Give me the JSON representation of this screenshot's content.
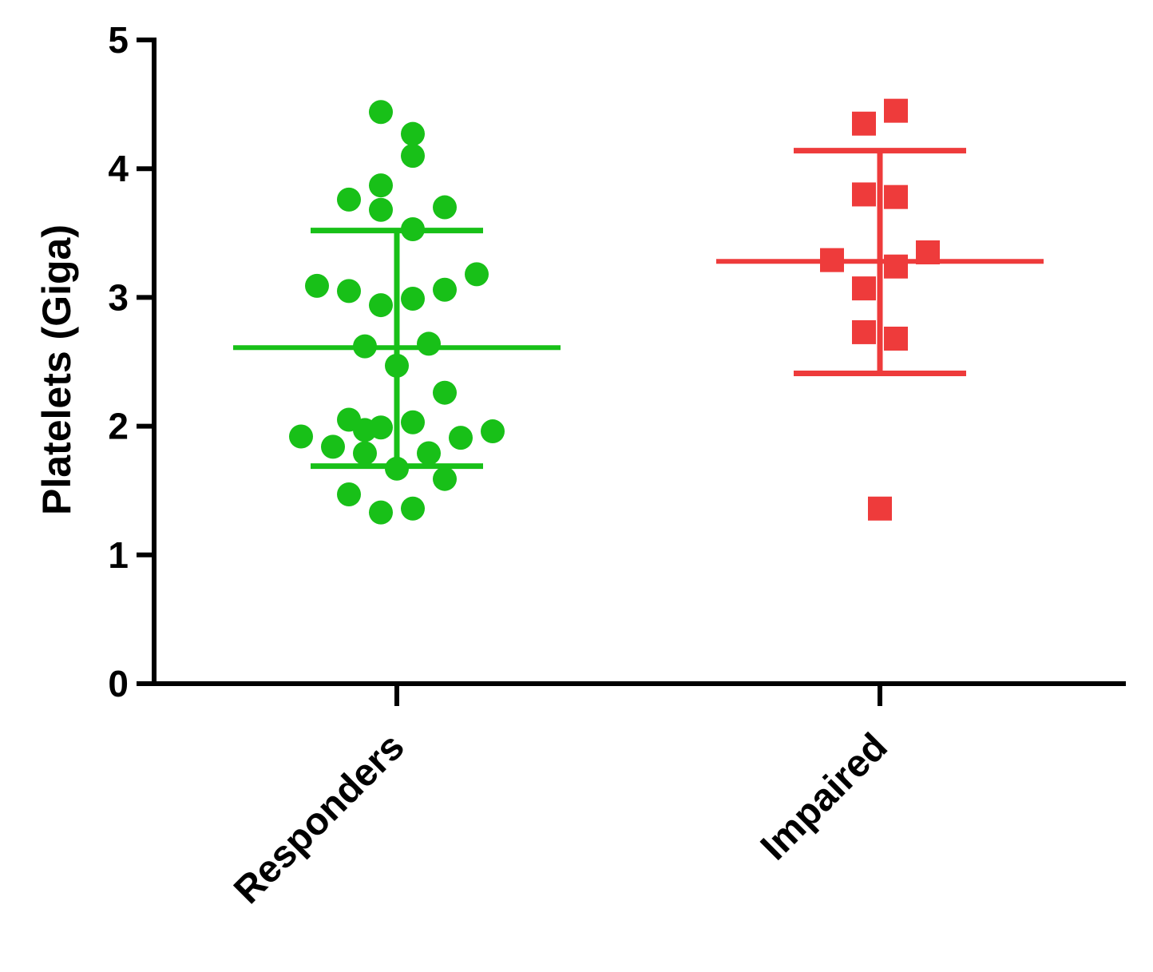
{
  "chart_data": {
    "type": "scatter",
    "ylabel": "Platelets (Giga)",
    "xlabel": "",
    "ylim": [
      0,
      5
    ],
    "yticks": [
      0,
      1,
      2,
      3,
      4,
      5
    ],
    "categories": [
      "Responders",
      "Impaired"
    ],
    "grid": false,
    "series": [
      {
        "category": "Responders",
        "marker": "circle",
        "color": "#18c018",
        "mean": 2.61,
        "sd_upper": 3.52,
        "sd_lower": 1.69,
        "points": [
          {
            "offset": -0.04,
            "y": 4.44
          },
          {
            "offset": 0.04,
            "y": 4.27
          },
          {
            "offset": 0.04,
            "y": 4.1
          },
          {
            "offset": -0.04,
            "y": 3.87
          },
          {
            "offset": -0.12,
            "y": 3.76
          },
          {
            "offset": -0.04,
            "y": 3.68
          },
          {
            "offset": 0.12,
            "y": 3.7
          },
          {
            "offset": 0.04,
            "y": 3.53
          },
          {
            "offset": 0.2,
            "y": 3.18
          },
          {
            "offset": -0.2,
            "y": 3.09
          },
          {
            "offset": -0.12,
            "y": 3.05
          },
          {
            "offset": 0.12,
            "y": 3.06
          },
          {
            "offset": 0.04,
            "y": 2.99
          },
          {
            "offset": -0.04,
            "y": 2.94
          },
          {
            "offset": -0.08,
            "y": 2.62
          },
          {
            "offset": 0.08,
            "y": 2.64
          },
          {
            "offset": 0.0,
            "y": 2.47
          },
          {
            "offset": 0.12,
            "y": 2.26
          },
          {
            "offset": -0.12,
            "y": 2.05
          },
          {
            "offset": 0.04,
            "y": 2.03
          },
          {
            "offset": -0.04,
            "y": 1.99
          },
          {
            "offset": -0.08,
            "y": 1.97
          },
          {
            "offset": 0.24,
            "y": 1.96
          },
          {
            "offset": -0.24,
            "y": 1.92
          },
          {
            "offset": 0.16,
            "y": 1.91
          },
          {
            "offset": -0.16,
            "y": 1.84
          },
          {
            "offset": -0.08,
            "y": 1.79
          },
          {
            "offset": 0.08,
            "y": 1.79
          },
          {
            "offset": 0.0,
            "y": 1.67
          },
          {
            "offset": 0.12,
            "y": 1.59
          },
          {
            "offset": -0.12,
            "y": 1.47
          },
          {
            "offset": 0.04,
            "y": 1.36
          },
          {
            "offset": -0.04,
            "y": 1.33
          }
        ]
      },
      {
        "category": "Impaired",
        "marker": "square",
        "color": "#ee3b3b",
        "mean": 3.28,
        "sd_upper": 4.14,
        "sd_lower": 2.41,
        "points": [
          {
            "offset": 0.04,
            "y": 4.45
          },
          {
            "offset": -0.04,
            "y": 4.35
          },
          {
            "offset": -0.04,
            "y": 3.8
          },
          {
            "offset": 0.04,
            "y": 3.78
          },
          {
            "offset": 0.12,
            "y": 3.35
          },
          {
            "offset": -0.12,
            "y": 3.29
          },
          {
            "offset": 0.04,
            "y": 3.24
          },
          {
            "offset": -0.04,
            "y": 3.07
          },
          {
            "offset": -0.04,
            "y": 2.73
          },
          {
            "offset": 0.04,
            "y": 2.68
          },
          {
            "offset": 0.0,
            "y": 1.36
          }
        ]
      }
    ]
  }
}
